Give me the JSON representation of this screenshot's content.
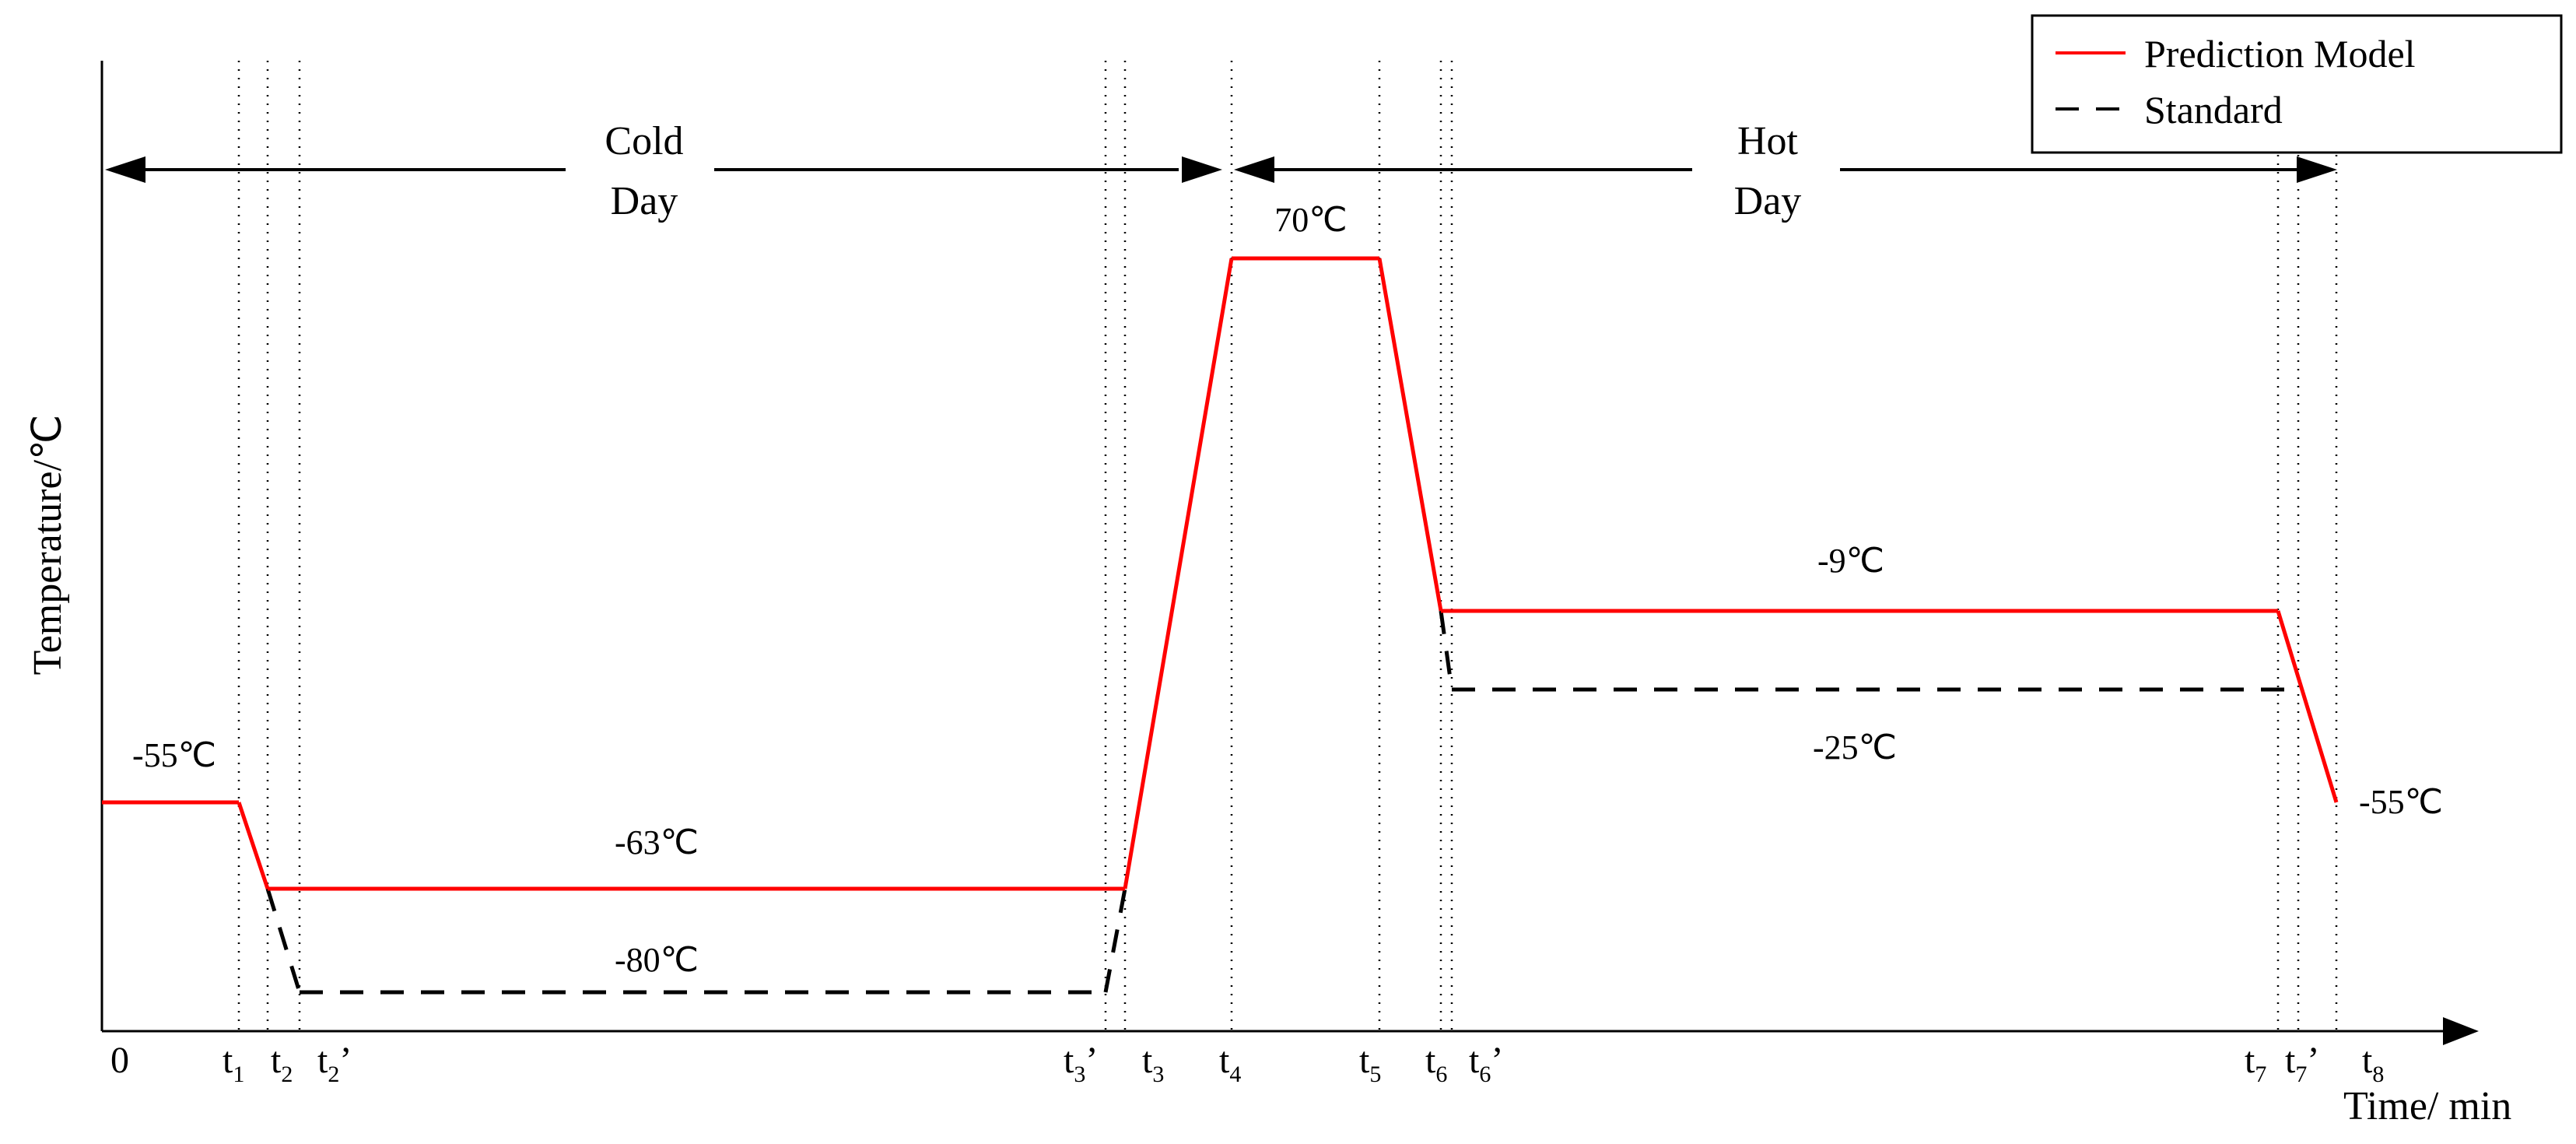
{
  "chart_data": {
    "type": "line",
    "xlabel": "Time/ min",
    "ylabel": "Temperature/℃",
    "legend": {
      "position": "top-right",
      "entries": [
        {
          "name": "Prediction Model",
          "color": "#ff0000",
          "dash": "solid"
        },
        {
          "name": "Standard",
          "color": "#000000",
          "dash": "dashed"
        }
      ]
    },
    "x_ticks": [
      {
        "label": "0"
      },
      {
        "label": "t",
        "sub": "1"
      },
      {
        "label": "t",
        "sub": "2"
      },
      {
        "label": "t",
        "sub": "2",
        "prime": "’"
      },
      {
        "label": "t",
        "sub": "3",
        "prime": "’"
      },
      {
        "label": "t",
        "sub": "3"
      },
      {
        "label": "t",
        "sub": "4"
      },
      {
        "label": "t",
        "sub": "5"
      },
      {
        "label": "t",
        "sub": "6"
      },
      {
        "label": "t",
        "sub": "6",
        "prime": "’"
      },
      {
        "label": "t",
        "sub": "7"
      },
      {
        "label": "t",
        "sub": "7",
        "prime": "’"
      },
      {
        "label": "t",
        "sub": "8"
      }
    ],
    "regions": [
      {
        "line1": "Cold",
        "line2": "Day"
      },
      {
        "line1": "Hot",
        "line2": "Day"
      }
    ],
    "series": [
      {
        "name": "Prediction Model",
        "points": [
          {
            "x": "0",
            "y": -55
          },
          {
            "x": "t1",
            "y": -55
          },
          {
            "x": "t2",
            "y": -63
          },
          {
            "x": "t3",
            "y": -63
          },
          {
            "x": "t4",
            "y": 70
          },
          {
            "x": "t5",
            "y": 70
          },
          {
            "x": "t6",
            "y": -9
          },
          {
            "x": "t7",
            "y": -9
          },
          {
            "x": "t8",
            "y": -55
          }
        ]
      },
      {
        "name": "Standard",
        "points": [
          {
            "x": "t2",
            "y": -63
          },
          {
            "x": "t2'",
            "y": -80
          },
          {
            "x": "t3'",
            "y": -80
          },
          {
            "x": "t3",
            "y": -63
          },
          {
            "x": "t6",
            "y": -9
          },
          {
            "x": "t6'",
            "y": -25
          },
          {
            "x": "t7'",
            "y": -25
          }
        ]
      }
    ],
    "annotations": [
      {
        "text": "-55℃",
        "near": "start"
      },
      {
        "text": "-63℃",
        "near": "cold plateau"
      },
      {
        "text": "-80℃",
        "near": "cold standard"
      },
      {
        "text": "70℃",
        "near": "peak"
      },
      {
        "text": "-9℃",
        "near": "hot plateau"
      },
      {
        "text": "-25℃",
        "near": "hot standard"
      },
      {
        "text": "-55℃",
        "near": "end"
      }
    ]
  }
}
